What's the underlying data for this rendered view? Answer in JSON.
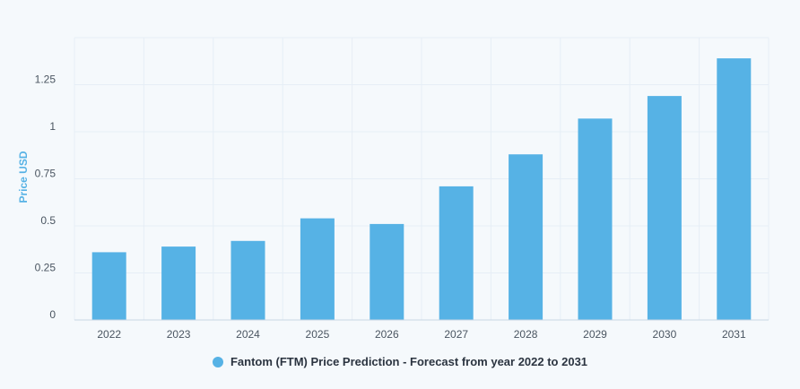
{
  "chart_data": {
    "type": "bar",
    "title": "",
    "xlabel": "",
    "ylabel": "Price USD",
    "categories": [
      "2022",
      "2023",
      "2024",
      "2025",
      "2026",
      "2027",
      "2028",
      "2029",
      "2030",
      "2031"
    ],
    "series": [
      {
        "name": "Fantom (FTM) Price Prediction - Forecast from year 2022 to 2031",
        "values": [
          0.36,
          0.39,
          0.42,
          0.54,
          0.51,
          0.71,
          0.88,
          1.07,
          1.19,
          1.39
        ]
      }
    ],
    "yticks": [
      {
        "value": 0,
        "label": "0"
      },
      {
        "value": 0.25,
        "label": "0.25"
      },
      {
        "value": 0.5,
        "label": "0.5"
      },
      {
        "value": 0.75,
        "label": "0.75"
      },
      {
        "value": 1,
        "label": "1"
      },
      {
        "value": 1.25,
        "label": "1.25"
      }
    ],
    "ylim": [
      0,
      1.5
    ],
    "grid": true,
    "legend_position": "bottom-center",
    "colors": {
      "bar": "#56b2e5",
      "grid": "#e6eef6",
      "axis": "#c9d6e3",
      "tick_text": "#4a5561",
      "ylabel": "#56b2e5"
    }
  }
}
